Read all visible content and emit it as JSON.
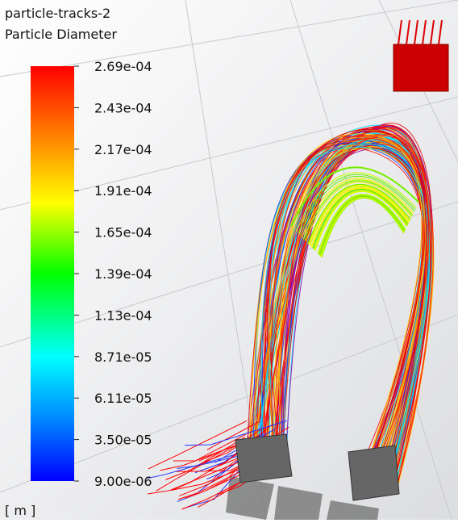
{
  "legend": {
    "title": "particle-tracks-2",
    "subtitle": "Particle Diameter",
    "ticks": [
      "2.69e-04",
      "2.43e-04",
      "2.17e-04",
      "1.91e-04",
      "1.65e-04",
      "1.39e-04",
      "1.13e-04",
      "8.71e-05",
      "6.11e-05",
      "3.50e-05",
      "9.00e-06"
    ],
    "unit": "[ m ]"
  }
}
